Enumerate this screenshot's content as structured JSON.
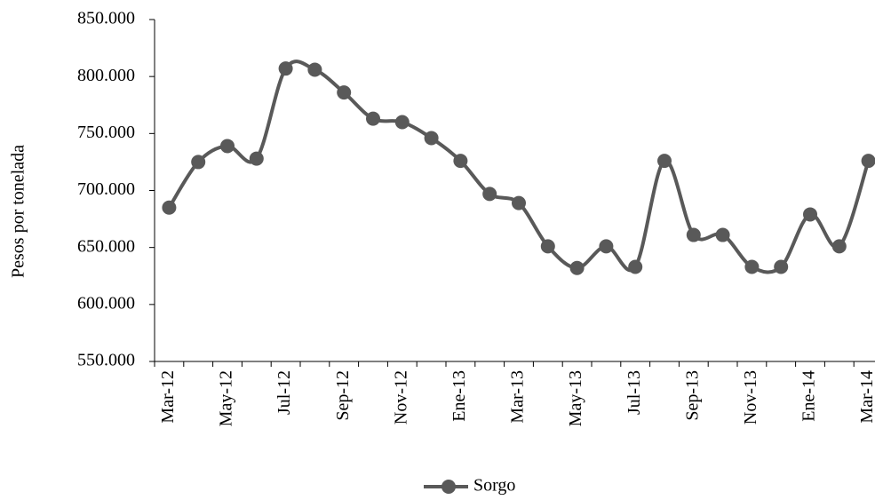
{
  "chart_data": {
    "type": "line",
    "y_label": "Pesos por tonelada",
    "categories": [
      "Mar-12",
      null,
      "May-12",
      null,
      "Jul-12",
      null,
      "Sep-12",
      null,
      "Nov-12",
      null,
      "Ene-13",
      null,
      "Mar-13",
      null,
      "May-13",
      null,
      "Jul-13",
      null,
      "Sep-13",
      null,
      "Nov-13",
      null,
      "Ene-14",
      null,
      "Mar-14"
    ],
    "series": [
      {
        "name": "Sorgo",
        "color": "#595959",
        "values": [
          685000,
          725000,
          739000,
          728000,
          807000,
          806000,
          786000,
          763000,
          760000,
          746000,
          726000,
          697000,
          689000,
          651000,
          632000,
          651000,
          633000,
          726000,
          661000,
          661000,
          633000,
          633000,
          679000,
          651000,
          726000
        ]
      }
    ],
    "ylim": [
      550000,
      850000
    ],
    "yticks": [
      {
        "value": 550000,
        "label": "550.000"
      },
      {
        "value": 600000,
        "label": "600.000"
      },
      {
        "value": 650000,
        "label": "650.000"
      },
      {
        "value": 700000,
        "label": "700.000"
      },
      {
        "value": 750000,
        "label": "750.000"
      },
      {
        "value": 800000,
        "label": "800.000"
      },
      {
        "value": 850000,
        "label": "850.000"
      }
    ],
    "grid": false,
    "legend": "bottom"
  }
}
